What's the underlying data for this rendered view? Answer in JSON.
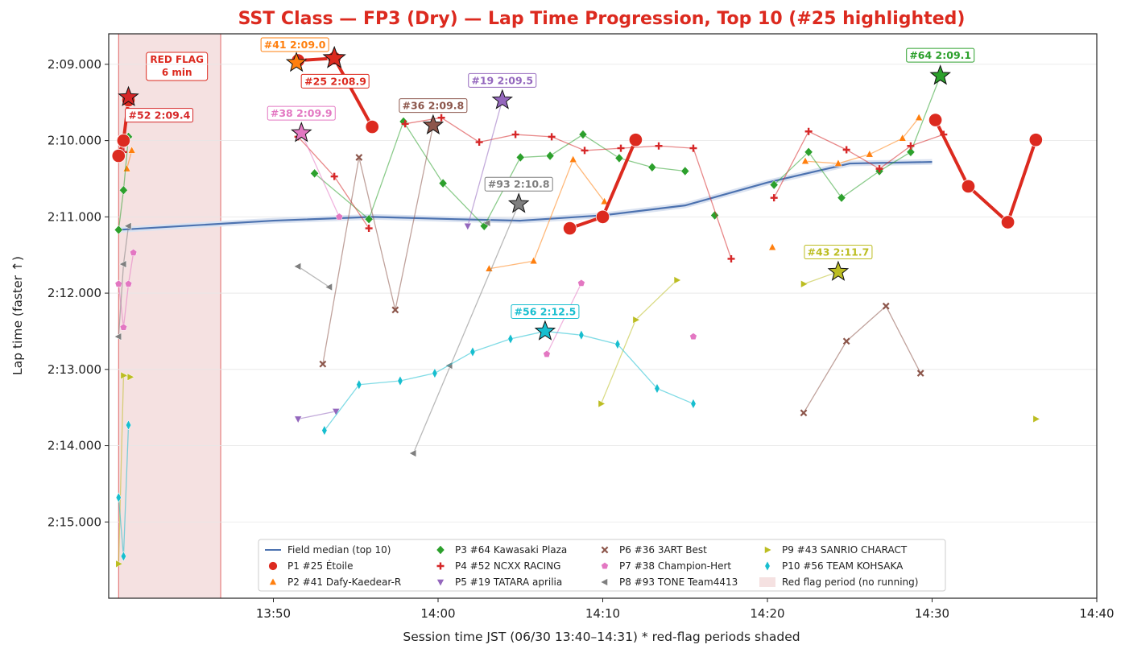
{
  "chart_data": {
    "type": "line",
    "title": "SST Class — FP3 (Dry) — Lap Time Progression, Top 10  (#25 highlighted)",
    "xlabel": "Session time JST (06/30 13:40–14:31)   * red-flag periods shaded",
    "ylabel": "Lap time (faster ↑)",
    "x_unit": "minutes after 13:40",
    "xlim": [
      0,
      60
    ],
    "ylim": [
      136.0,
      128.6
    ],
    "y_inverted": true,
    "x_ticks": [
      {
        "value": 10,
        "label": "13:50"
      },
      {
        "value": 20,
        "label": "14:00"
      },
      {
        "value": 30,
        "label": "14:10"
      },
      {
        "value": 40,
        "label": "14:20"
      },
      {
        "value": 50,
        "label": "14:30"
      },
      {
        "value": 60,
        "label": "14:40"
      }
    ],
    "y_ticks": [
      {
        "value": 129,
        "label": "2:09.000"
      },
      {
        "value": 130,
        "label": "2:10.000"
      },
      {
        "value": 131,
        "label": "2:11.000"
      },
      {
        "value": 132,
        "label": "2:12.000"
      },
      {
        "value": 133,
        "label": "2:13.000"
      },
      {
        "value": 134,
        "label": "2:14.000"
      },
      {
        "value": 135,
        "label": "2:15.000"
      }
    ],
    "grid": true,
    "red_flag": {
      "start": 0.6,
      "end": 6.8,
      "label_line1": "RED FLAG",
      "label_line2": "6 min",
      "color": "#f5e1e1"
    },
    "median": {
      "name": "Field median (top 10)",
      "color": "#4c72b0",
      "x": [
        0.6,
        10,
        16,
        21,
        25,
        30,
        35,
        40,
        45,
        50
      ],
      "y": [
        131.17,
        131.05,
        131.0,
        131.03,
        131.05,
        130.98,
        130.85,
        130.55,
        130.3,
        130.28
      ]
    },
    "series": [
      {
        "name": "P1 #25 Étoile",
        "color": "#dc2a1f",
        "marker": "circle",
        "highlight": true,
        "segments": [
          {
            "x": [
              0.6,
              0.9,
              1.2
            ],
            "y": [
              130.2,
              130.0,
              129.47
            ]
          },
          {
            "x": [
              11.5,
              13.7
            ],
            "y": [
              128.95,
              128.92
            ]
          },
          {
            "x": [
              13.7,
              16
            ],
            "y": [
              128.92,
              129.82
            ]
          },
          {
            "x": [
              28,
              30,
              32
            ],
            "y": [
              131.15,
              131.0,
              129.99
            ]
          },
          {
            "x": [
              50.2,
              52.2,
              54.6,
              56.3
            ],
            "y": [
              129.73,
              130.6,
              131.07,
              129.99
            ]
          }
        ],
        "best": {
          "x": 13.7,
          "y": 128.92,
          "label": "#25 2:08.9"
        }
      },
      {
        "name": "P2 #41 Dafy-Kaedear-R",
        "color": "#ff7f0e",
        "marker": "triangle",
        "highlight": false,
        "segments": [
          {
            "x": [
              1.1,
              1.4
            ],
            "y": [
              130.37,
              130.13
            ]
          },
          {
            "x": [
              11.4
            ],
            "y": [
              128.98
            ]
          },
          {
            "x": [
              23.1,
              25.8,
              28.2,
              30.1
            ],
            "y": [
              131.68,
              131.58,
              130.25,
              130.8
            ]
          },
          {
            "x": [
              40.3
            ],
            "y": [
              131.4
            ]
          },
          {
            "x": [
              42.3,
              44.3,
              46.2,
              48.2,
              49.2
            ],
            "y": [
              130.27,
              130.3,
              130.18,
              129.97,
              129.7
            ]
          }
        ],
        "best": {
          "x": 11.4,
          "y": 128.98,
          "label": "#41 2:09.0"
        }
      },
      {
        "name": "P3 #64 Kawasaki Plaza",
        "color": "#2ca02c",
        "marker": "diamond",
        "highlight": false,
        "segments": [
          {
            "x": [
              0.6,
              0.9,
              1.2
            ],
            "y": [
              131.17,
              130.65,
              129.95
            ]
          },
          {
            "x": [
              12.5,
              15.8,
              17.9,
              20.3,
              22.8,
              25,
              26.8,
              28.8,
              31,
              33,
              35
            ],
            "y": [
              130.43,
              131.03,
              129.75,
              130.56,
              131.12,
              130.22,
              130.2,
              129.92,
              130.23,
              130.35,
              130.4
            ]
          },
          {
            "x": [
              36.8
            ],
            "y": [
              130.98
            ]
          },
          {
            "x": [
              40.4,
              42.5,
              44.5,
              46.8,
              48.7,
              50.5
            ],
            "y": [
              130.58,
              130.15,
              130.75,
              130.4,
              130.15,
              129.15
            ]
          }
        ],
        "best": {
          "x": 50.5,
          "y": 129.15,
          "label": "#64 2:09.1"
        }
      },
      {
        "name": "P4 #52 NCXX RACING",
        "color": "#d62728",
        "marker": "plus",
        "highlight": false,
        "segments": [
          {
            "x": [
              0.9,
              1.2
            ],
            "y": [
              130.15,
              129.43
            ]
          },
          {
            "x": [
              11.5,
              13.7,
              15.8
            ],
            "y": [
              129.95,
              130.47,
              131.15
            ]
          },
          {
            "x": [
              18,
              20.2,
              22.5,
              24.7,
              26.9,
              28.9,
              31.1,
              33.4,
              35.5,
              37.8
            ],
            "y": [
              129.78,
              129.7,
              130.02,
              129.92,
              129.95,
              130.13,
              130.1,
              130.07,
              130.1,
              131.55
            ]
          },
          {
            "x": [
              40.4,
              42.5,
              44.8,
              46.8,
              48.7,
              50.7
            ],
            "y": [
              130.75,
              129.88,
              130.12,
              130.37,
              130.07,
              129.92
            ]
          }
        ],
        "best": {
          "x": 1.2,
          "y": 129.43,
          "label": "#52 2:09.4"
        }
      },
      {
        "name": "P5 #19 TATARA aprilia",
        "color": "#9467bd",
        "marker": "tri_down",
        "highlight": false,
        "segments": [
          {
            "x": [
              11.5,
              13.8
            ],
            "y": [
              133.65,
              133.55
            ]
          },
          {
            "x": [
              21.8,
              23.9
            ],
            "y": [
              131.12,
              129.47
            ]
          }
        ],
        "best": {
          "x": 23.9,
          "y": 129.47,
          "label": "#19 2:09.5"
        }
      },
      {
        "name": "P6 #36 3ART Best",
        "color": "#8c564b",
        "marker": "x",
        "highlight": false,
        "segments": [
          {
            "x": [
              13,
              15.2,
              17.4,
              19.7
            ],
            "y": [
              132.93,
              130.22,
              132.22,
              129.8
            ]
          },
          {
            "x": [
              42.2,
              44.8,
              47.2,
              49.3
            ],
            "y": [
              133.57,
              132.63,
              132.17,
              133.05
            ]
          }
        ],
        "best": {
          "x": 19.7,
          "y": 129.8,
          "label": "#36 2:09.8"
        }
      },
      {
        "name": "P7 #38 Champion-Hert",
        "color": "#e377c2",
        "marker": "pentagon",
        "highlight": false,
        "segments": [
          {
            "x": [
              0.6,
              0.9,
              1.2,
              1.5
            ],
            "y": [
              131.88,
              132.45,
              131.88,
              131.47
            ]
          },
          {
            "x": [
              11.7,
              14
            ],
            "y": [
              129.9,
              131.0
            ]
          },
          {
            "x": [
              26.6,
              28.7
            ],
            "y": [
              132.8,
              131.87
            ]
          },
          {
            "x": [
              35.5
            ],
            "y": [
              132.57
            ]
          }
        ],
        "best": {
          "x": 11.7,
          "y": 129.9,
          "label": "#38 2:09.9"
        }
      },
      {
        "name": "P8 #93 TONE Team4413",
        "color": "#7f7f7f",
        "marker": "tri_left",
        "highlight": false,
        "segments": [
          {
            "x": [
              0.6,
              0.9,
              1.2
            ],
            "y": [
              132.57,
              131.62,
              131.12
            ]
          },
          {
            "x": [
              11.5,
              13.4
            ],
            "y": [
              131.65,
              131.92
            ]
          },
          {
            "x": [
              18.5,
              24.9
            ],
            "y": [
              134.1,
              130.83
            ]
          },
          {
            "x": [
              23
            ],
            "y": [
              131.08
            ]
          },
          {
            "x": [
              20.7
            ],
            "y": [
              132.95
            ]
          }
        ],
        "best": {
          "x": 24.9,
          "y": 130.83,
          "label": "#93 2:10.8"
        }
      },
      {
        "name": "P9 #43 SANRIO CHARACT",
        "color": "#bcbd22",
        "marker": "tri_right",
        "highlight": false,
        "segments": [
          {
            "x": [
              0.6,
              0.9,
              1.3
            ],
            "y": [
              135.55,
              133.08,
              133.1
            ]
          },
          {
            "x": [
              29.9,
              32,
              34.5
            ],
            "y": [
              133.45,
              132.35,
              131.83
            ]
          },
          {
            "x": [
              42.2,
              44.3
            ],
            "y": [
              131.88,
              131.72
            ]
          },
          {
            "x": [
              56.3
            ],
            "y": [
              133.65
            ]
          }
        ],
        "best": {
          "x": 44.3,
          "y": 131.72,
          "label": "#43 2:11.7"
        }
      },
      {
        "name": "P10 #56 TEAM KOHSAKA",
        "color": "#17becf",
        "marker": "thin_diamond",
        "highlight": false,
        "segments": [
          {
            "x": [
              0.6,
              0.9,
              1.2
            ],
            "y": [
              134.68,
              135.45,
              133.73
            ]
          },
          {
            "x": [
              13.1,
              15.2,
              17.7,
              19.8,
              22.1,
              24.4,
              26.5,
              28.7,
              30.9,
              33.3,
              35.5
            ],
            "y": [
              133.8,
              133.2,
              133.15,
              133.05,
              132.77,
              132.6,
              132.5,
              132.55,
              132.67,
              133.25,
              133.45
            ]
          }
        ],
        "best": {
          "x": 26.5,
          "y": 132.5,
          "label": "#56 2:12.5"
        }
      }
    ],
    "legend": {
      "placement": "lower-center",
      "columns": 4,
      "red_flag_entry": "Red flag period (no running)"
    }
  }
}
